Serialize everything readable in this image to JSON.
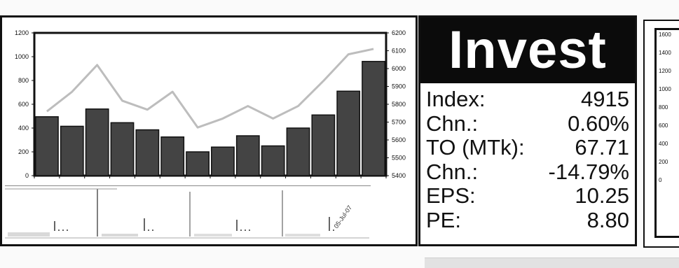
{
  "chart_data": {
    "type": "bar",
    "categories": [
      "",
      "",
      "",
      "",
      "",
      "",
      "",
      "",
      "",
      "",
      "",
      "",
      "",
      ""
    ],
    "series": [
      {
        "axis": "left",
        "kind": "bar",
        "values": [
          495,
          415,
          560,
          445,
          385,
          325,
          200,
          240,
          335,
          250,
          400,
          510,
          710,
          960
        ]
      },
      {
        "axis": "right",
        "kind": "line",
        "values": [
          5760,
          5870,
          6020,
          5820,
          5770,
          5870,
          5670,
          5720,
          5790,
          5720,
          5790,
          5930,
          6080,
          6110
        ]
      }
    ],
    "left_axis": {
      "ylim": [
        0,
        1200
      ],
      "ticks": [
        "0",
        "200",
        "400",
        "600",
        "800",
        "1000",
        "1200"
      ]
    },
    "right_axis": {
      "ylim": [
        5400,
        6200
      ],
      "ticks": [
        "5400",
        "5500",
        "5600",
        "5700",
        "5800",
        "5900",
        "6000",
        "6100",
        "6200"
      ]
    },
    "annotation": "05-Jul-07",
    "grid": false,
    "colors": {
      "bar": "#444444",
      "line": "#bdbdbd"
    }
  },
  "invest": {
    "title": "Invest",
    "stats": [
      {
        "label": "Index:",
        "value": "4915"
      },
      {
        "label": "Chn.:",
        "value": "0.60%"
      },
      {
        "label": "TO (MTk):",
        "value": "67.71"
      },
      {
        "label": "Chn.:",
        "value": "-14.79%"
      },
      {
        "label": "EPS:",
        "value": "10.25"
      },
      {
        "label": "PE:",
        "value": "8.80"
      }
    ]
  },
  "right_chart": {
    "ticks": [
      "1600",
      "1400",
      "1200",
      "1000",
      "800",
      "600",
      "400",
      "200",
      "0"
    ]
  }
}
